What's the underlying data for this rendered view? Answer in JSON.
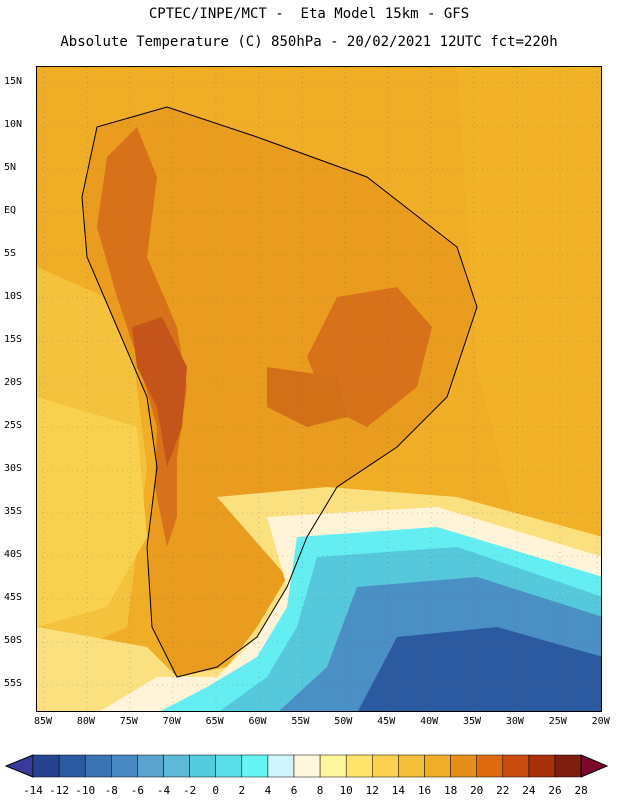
{
  "title_line1": "CPTEC/INPE/MCT -  Eta Model 15km - GFS",
  "title_line2": "Absolute Temperature (C) 850hPa - 20/02/2021 12UTC fct=220h",
  "lat_labels": [
    "15N",
    "10N",
    "5N",
    "EQ",
    "5S",
    "10S",
    "15S",
    "20S",
    "25S",
    "30S",
    "35S",
    "40S",
    "45S",
    "50S",
    "55S"
  ],
  "lon_labels": [
    "85W",
    "80W",
    "75W",
    "70W",
    "65W",
    "60W",
    "55W",
    "50W",
    "45W",
    "40W",
    "35W",
    "30W",
    "25W",
    "20W"
  ],
  "colorbar": {
    "labels": [
      "-14",
      "-12",
      "-10",
      "-8",
      "-6",
      "-4",
      "-2",
      "0",
      "2",
      "4",
      "6",
      "8",
      "10",
      "12",
      "14",
      "16",
      "18",
      "20",
      "22",
      "24",
      "26",
      "28"
    ],
    "low_color": "#3a3a9c",
    "high_color": "#7a0a2c",
    "colors": [
      "#26438f",
      "#2c5aa0",
      "#3a72b3",
      "#4a8ac2",
      "#5aa3ce",
      "#5cbad8",
      "#55ccde",
      "#5be0ea",
      "#66f4f4",
      "#cff4fc",
      "#fff7e0",
      "#fff59a",
      "#ffe36b",
      "#fad250",
      "#f4bf3a",
      "#efad2a",
      "#e58f1a",
      "#dd6a0f",
      "#c84a0c",
      "#a8300a",
      "#7f1e0e"
    ]
  }
}
